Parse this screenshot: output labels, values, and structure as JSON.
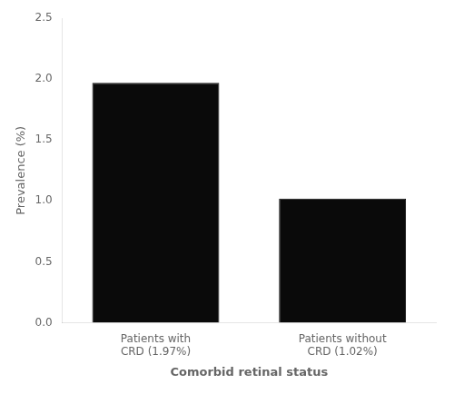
{
  "chart_data": {
    "type": "bar",
    "categories": [
      "Patients with\nCRD (1.97%)",
      "Patients without\nCRD (1.02%)"
    ],
    "values": [
      1.97,
      1.02
    ],
    "color": "#0a0a0a",
    "xlabel": "Comorbid retinal status",
    "ylabel": "Prevalence (%)",
    "ylim": [
      0,
      2.5
    ],
    "yticks": [
      {
        "value": 0,
        "label": "0.0"
      },
      0.5,
      {
        "value": 1,
        "label": "1.0"
      },
      1.5,
      {
        "value": 2,
        "label": "2.0"
      },
      2.5
    ],
    "grid": false
  }
}
